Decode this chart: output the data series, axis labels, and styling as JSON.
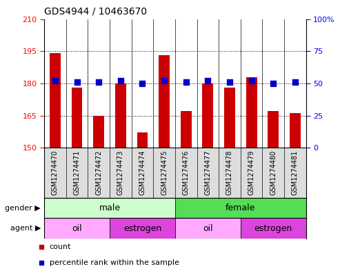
{
  "title": "GDS4944 / 10463670",
  "samples": [
    "GSM1274470",
    "GSM1274471",
    "GSM1274472",
    "GSM1274473",
    "GSM1274474",
    "GSM1274475",
    "GSM1274476",
    "GSM1274477",
    "GSM1274478",
    "GSM1274479",
    "GSM1274480",
    "GSM1274481"
  ],
  "counts": [
    194,
    178,
    165,
    180,
    157,
    193,
    167,
    180,
    178,
    183,
    167,
    166
  ],
  "percentile_ranks": [
    52,
    51,
    51,
    52,
    50,
    52,
    51,
    52,
    51,
    52,
    50,
    51
  ],
  "ylim_left": [
    150,
    210
  ],
  "ylim_right": [
    0,
    100
  ],
  "yticks_left": [
    150,
    165,
    180,
    195,
    210
  ],
  "yticks_right": [
    0,
    25,
    50,
    75,
    100
  ],
  "bar_color": "#cc0000",
  "dot_color": "#0000cc",
  "gender_groups": [
    {
      "label": "male",
      "start": 0,
      "end": 6,
      "color": "#ccffcc"
    },
    {
      "label": "female",
      "start": 6,
      "end": 12,
      "color": "#55dd55"
    }
  ],
  "agent_groups": [
    {
      "label": "oil",
      "start": 0,
      "end": 3,
      "color": "#ffaaff"
    },
    {
      "label": "estrogen",
      "start": 3,
      "end": 6,
      "color": "#dd44dd"
    },
    {
      "label": "oil",
      "start": 6,
      "end": 9,
      "color": "#ffaaff"
    },
    {
      "label": "estrogen",
      "start": 9,
      "end": 12,
      "color": "#dd44dd"
    }
  ],
  "legend_count_label": "count",
  "legend_percentile_label": "percentile rank within the sample",
  "bar_width": 0.5,
  "dot_size": 40,
  "xtick_bg": "#dddddd",
  "plot_bg": "#ffffff"
}
